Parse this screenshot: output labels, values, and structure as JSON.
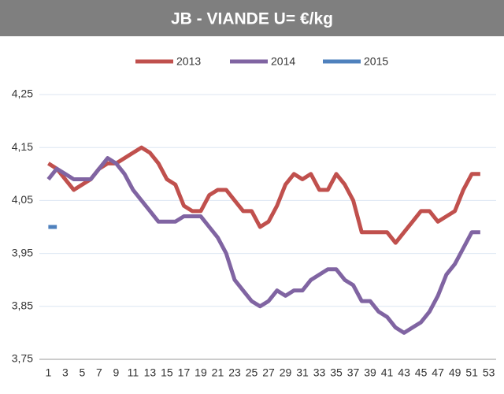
{
  "chart_data": {
    "type": "line",
    "title": "JB - VIANDE U=  €/kg",
    "categories": [
      1,
      null,
      3,
      null,
      5,
      null,
      7,
      null,
      9,
      null,
      11,
      null,
      13,
      null,
      15,
      null,
      17,
      null,
      19,
      null,
      21,
      null,
      23,
      null,
      25,
      null,
      27,
      null,
      29,
      null,
      31,
      null,
      33,
      null,
      35,
      null,
      37,
      null,
      39,
      null,
      41,
      null,
      43,
      null,
      45,
      null,
      47,
      null,
      49,
      null,
      51,
      null,
      53
    ],
    "series": [
      {
        "name": "2013",
        "color": "#c0504d",
        "values": [
          4.12,
          4.11,
          4.09,
          4.07,
          4.08,
          4.09,
          4.11,
          4.12,
          4.12,
          4.13,
          4.14,
          4.15,
          4.14,
          4.12,
          4.09,
          4.08,
          4.04,
          4.03,
          4.03,
          4.06,
          4.07,
          4.07,
          4.05,
          4.03,
          4.03,
          4.0,
          4.01,
          4.04,
          4.08,
          4.1,
          4.09,
          4.1,
          4.07,
          4.07,
          4.1,
          4.08,
          4.05,
          3.99,
          3.99,
          3.99,
          3.99,
          3.97,
          3.99,
          4.01,
          4.03,
          4.03,
          4.01,
          4.02,
          4.03,
          4.07,
          4.1,
          4.1,
          null
        ]
      },
      {
        "name": "2014",
        "color": "#8064a2",
        "values": [
          4.09,
          4.11,
          4.1,
          4.09,
          4.09,
          4.09,
          4.11,
          4.13,
          4.12,
          4.1,
          4.07,
          4.05,
          4.03,
          4.01,
          4.01,
          4.01,
          4.02,
          4.02,
          4.02,
          4.0,
          3.98,
          3.95,
          3.9,
          3.88,
          3.86,
          3.85,
          3.86,
          3.88,
          3.87,
          3.88,
          3.88,
          3.9,
          3.91,
          3.92,
          3.92,
          3.9,
          3.89,
          3.86,
          3.86,
          3.84,
          3.83,
          3.81,
          3.8,
          3.81,
          3.82,
          3.84,
          3.87,
          3.91,
          3.93,
          3.96,
          3.99,
          3.99,
          null
        ]
      },
      {
        "name": "2015",
        "color": "#4f81bd",
        "values": [
          4.0,
          4.0,
          null,
          null,
          null,
          null,
          null,
          null,
          null,
          null,
          null,
          null,
          null,
          null,
          null,
          null,
          null,
          null,
          null,
          null,
          null,
          null,
          null,
          null,
          null,
          null,
          null,
          null,
          null,
          null,
          null,
          null,
          null,
          null,
          null,
          null,
          null,
          null,
          null,
          null,
          null,
          null,
          null,
          null,
          null,
          null,
          null,
          null,
          null,
          null,
          null,
          null,
          null
        ]
      }
    ],
    "ylim": [
      3.75,
      4.25
    ],
    "yticks": [
      {
        "value": 3.75,
        "label": "3,75"
      },
      {
        "value": 3.85,
        "label": "3,85"
      },
      {
        "value": 3.95,
        "label": "3,95"
      },
      {
        "value": 4.05,
        "label": "4,05"
      },
      {
        "value": 4.15,
        "label": "4,15"
      },
      {
        "value": 4.25,
        "label": "4,25"
      }
    ],
    "grid": true,
    "legend": "top"
  }
}
